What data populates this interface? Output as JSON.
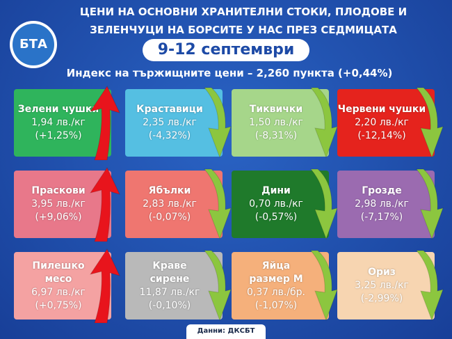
{
  "header": {
    "logo": "БТА",
    "title_lines": [
      "ЦЕНИ НА ОСНОВНИ ХРАНИТЕЛНИ СТОКИ, ПЛОДОВЕ И",
      "ЗЕЛЕНЧУЦИ НА БОРСИТЕ У НАС ПРЕЗ СЕДМИЦАТА"
    ],
    "date": "9-12 септември",
    "index": "Индекс на тържищните цени – 2,260 пункта (+0,44%)"
  },
  "tiles": [
    {
      "name": [
        "Зелени чушки"
      ],
      "price": "1,94 лв./кг",
      "change": "(+1,25%)",
      "color": "#2fb45c",
      "arrow": "up"
    },
    {
      "name": [
        "Краставици"
      ],
      "price": "2,35 лв./кг",
      "change": "(-4,32%)",
      "color": "#55bfe2",
      "arrow": "down"
    },
    {
      "name": [
        "Тиквички"
      ],
      "price": "1,50 лв./кг",
      "change": "(-8,31%)",
      "color": "#a6d68a",
      "arrow": "down"
    },
    {
      "name": [
        "Червени чушки"
      ],
      "price": "2,20 лв./кг",
      "change": "(-12,14%)",
      "color": "#e5231d",
      "arrow": "down"
    },
    {
      "name": [
        "Праскови"
      ],
      "price": "3,95 лв./кг",
      "change": "(+9,06%)",
      "color": "#e8788a",
      "arrow": "up"
    },
    {
      "name": [
        "Ябълки"
      ],
      "price": "2,83 лв./кг",
      "change": "(-0,07%)",
      "color": "#ef7670",
      "arrow": "down"
    },
    {
      "name": [
        "Дини"
      ],
      "price": "0,70 лв./кг",
      "change": "(-0,57%)",
      "color": "#1f7a2b",
      "arrow": "down"
    },
    {
      "name": [
        "Грозде"
      ],
      "price": "2,98 лв./кг",
      "change": "(-7,17%)",
      "color": "#9b6bb0",
      "arrow": "down"
    },
    {
      "name": [
        "Пилешко",
        "месо"
      ],
      "price": "6,97 лв./кг",
      "change": "(+0,75%)",
      "color": "#f4a2a2",
      "arrow": "up"
    },
    {
      "name": [
        "Краве",
        "сирене"
      ],
      "price": "11,87 лв./кг",
      "change": "(-0,10%)",
      "color": "#b9b9b9",
      "arrow": "down"
    },
    {
      "name": [
        "Яйца",
        "размер М"
      ],
      "price": "0,37 лв./бр.",
      "change": "(-1,07%)",
      "color": "#f5b07b",
      "arrow": "down"
    },
    {
      "name": [
        "Ориз"
      ],
      "price": "3,25 лв./кг",
      "change": "(-2,99%)",
      "color": "#f7d5b1",
      "arrow": "down"
    }
  ],
  "footer": "Данни: ДКСБТ"
}
